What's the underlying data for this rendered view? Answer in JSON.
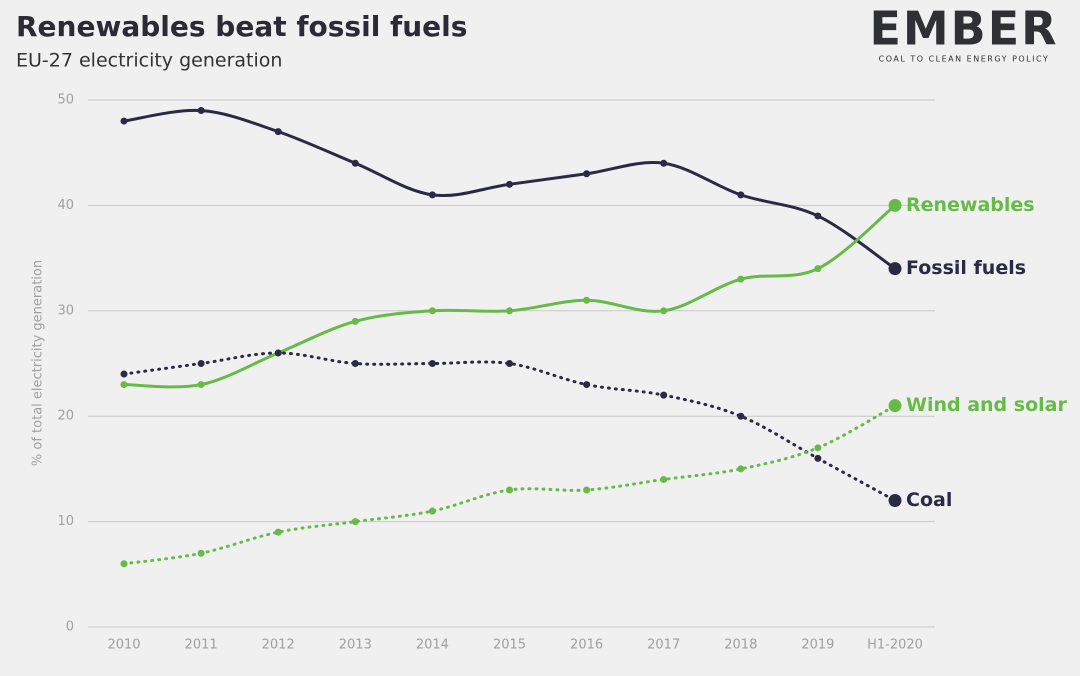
{
  "logo": {
    "name": "EMBER",
    "tagline": "COAL TO CLEAN ENERGY POLICY"
  },
  "chart_data": {
    "type": "line",
    "title": "Renewables beat fossil fuels",
    "subtitle": "EU-27 electricity generation",
    "y_label": "% of total electricity generation",
    "categories": [
      "2010",
      "2011",
      "2012",
      "2013",
      "2014",
      "2015",
      "2016",
      "2017",
      "2018",
      "2019",
      "H1-2020"
    ],
    "series": [
      {
        "name": "Fossil fuels",
        "color": "#2b2a45",
        "style": "solid",
        "values": [
          48,
          49,
          47,
          44,
          41,
          42,
          43,
          44,
          41,
          39,
          34
        ]
      },
      {
        "name": "Renewables",
        "color": "#66bb47",
        "style": "solid",
        "values": [
          23,
          23,
          26,
          29,
          30,
          30,
          31,
          30,
          33,
          34,
          40
        ]
      },
      {
        "name": "Coal",
        "color": "#2b2a45",
        "style": "dotted",
        "values": [
          24,
          25,
          26,
          25,
          25,
          25,
          23,
          22,
          20,
          16,
          12
        ]
      },
      {
        "name": "Wind and solar",
        "color": "#66bb47",
        "style": "dotted",
        "values": [
          6,
          7,
          9,
          10,
          11,
          13,
          13,
          14,
          15,
          17,
          21
        ]
      }
    ],
    "ylim": [
      0,
      50
    ],
    "yticks": [
      0,
      10,
      20,
      30,
      40,
      50
    ],
    "grid": true,
    "legend": "line-end"
  }
}
